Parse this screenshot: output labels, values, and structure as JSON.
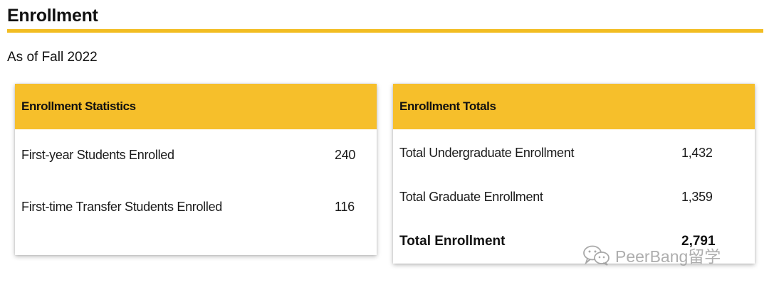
{
  "section": {
    "title": "Enrollment",
    "subtitle": "As of Fall 2022",
    "accent_color": "#f2bd22"
  },
  "stats_card": {
    "header": "Enrollment Statistics",
    "header_color": "#f6bf2b",
    "rows": [
      {
        "label": "First-year Students Enrolled",
        "value": "240"
      },
      {
        "label": "First-time Transfer Students Enrolled",
        "value": "116"
      }
    ]
  },
  "totals_card": {
    "header": "Enrollment Totals",
    "header_color": "#f6bf2b",
    "rows": [
      {
        "label": "Total Undergraduate Enrollment",
        "value": "1,432"
      },
      {
        "label": "Total Graduate Enrollment",
        "value": "1,359"
      }
    ],
    "total": {
      "label": "Total Enrollment",
      "value": "2,791"
    }
  },
  "watermark": {
    "icon": "wechat-icon",
    "text": "PeerBang留学"
  }
}
